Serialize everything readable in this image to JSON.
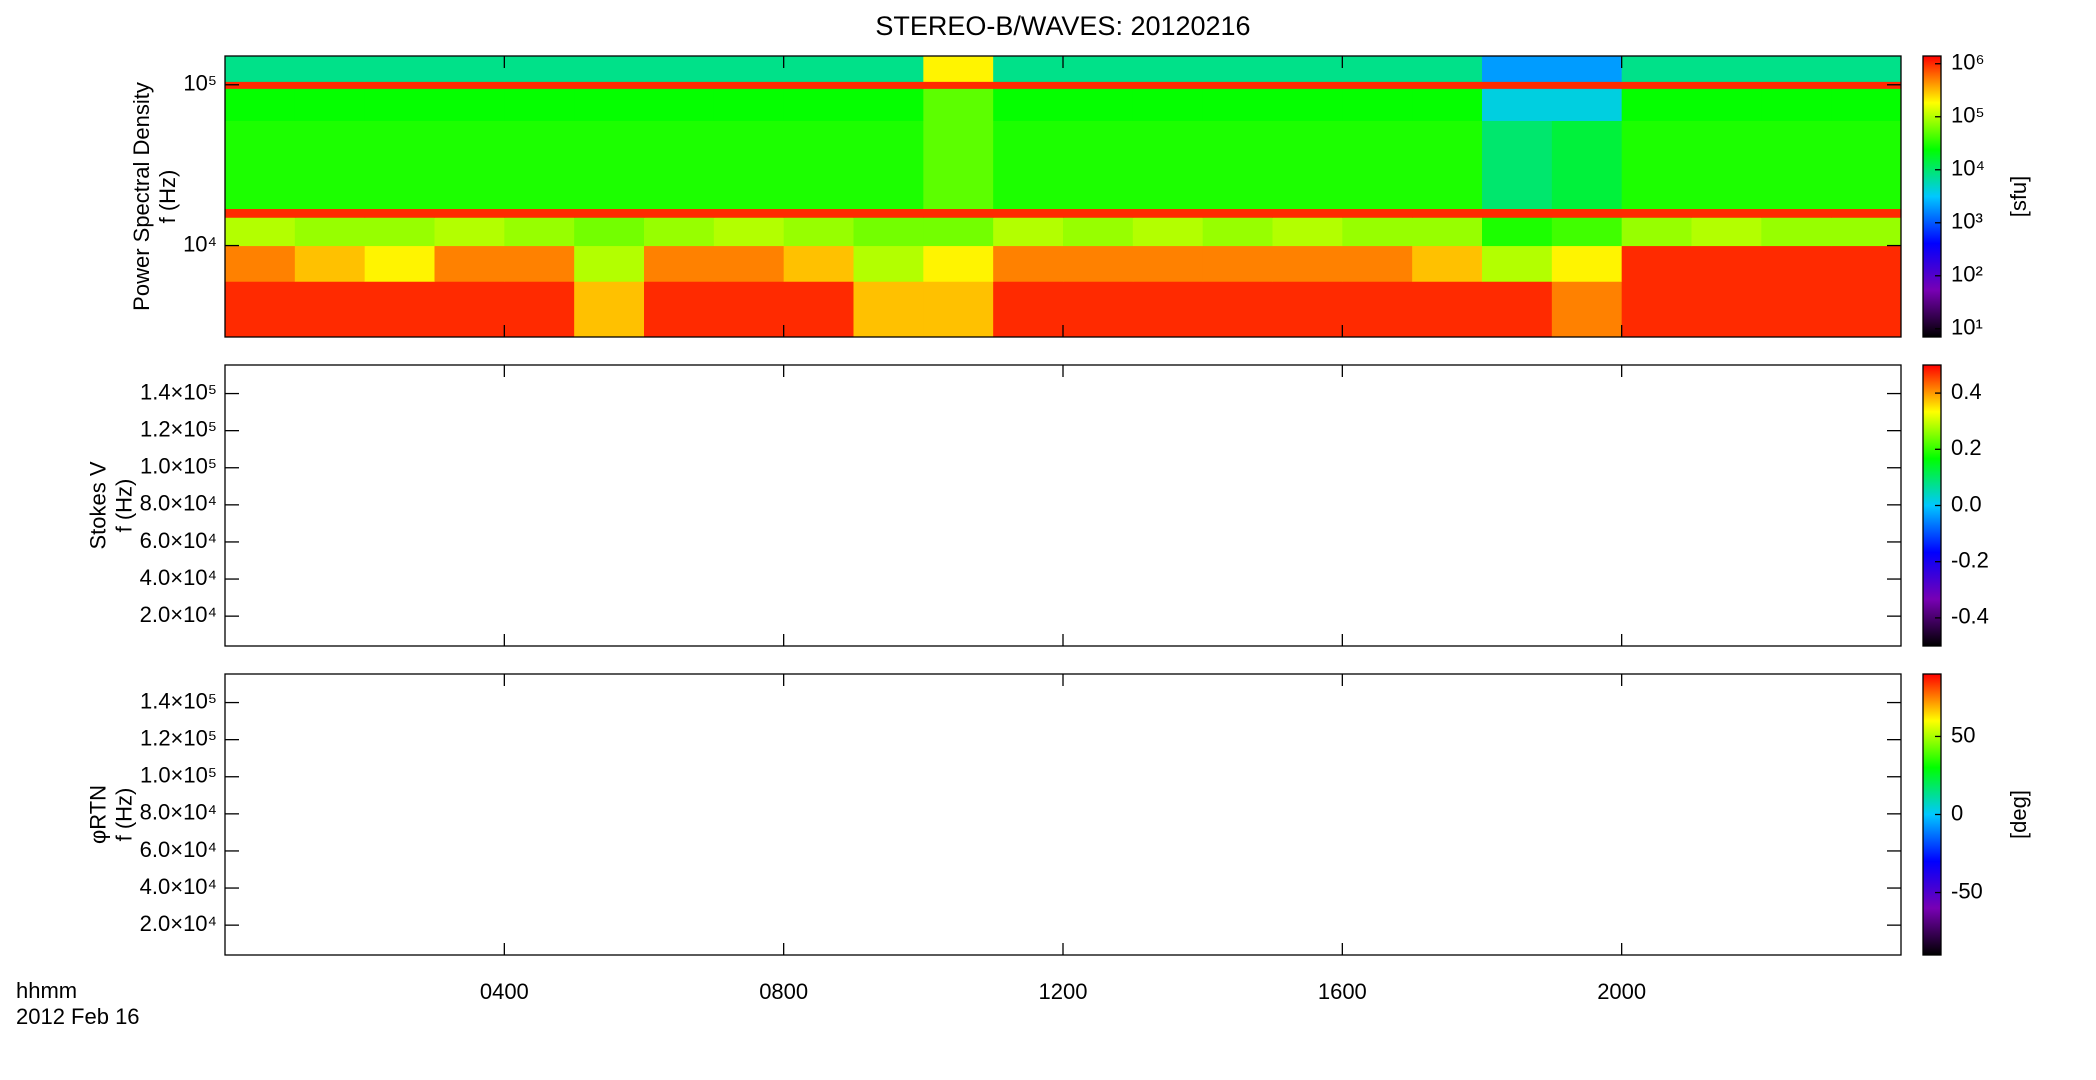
{
  "title": "STEREO-B/WAVES: 20120216",
  "xlabel": [
    "hhmm",
    "2012 Feb 16"
  ],
  "x_axis": {
    "xlim": [
      0,
      24
    ],
    "xticks": [
      {
        "value": 4,
        "label": "0400"
      },
      {
        "value": 8,
        "label": "0800"
      },
      {
        "value": 12,
        "label": "1200"
      },
      {
        "value": 16,
        "label": "1600"
      },
      {
        "value": 20,
        "label": "2000"
      }
    ]
  },
  "colormap": [
    "#000000",
    "#7800b4",
    "#0000ff",
    "#00c8ff",
    "#00ff00",
    "#ffff00",
    "#ff0000"
  ],
  "chart_data": [
    {
      "type": "spectrogram",
      "ylabel": [
        "Power Spectral Density",
        "f (Hz)"
      ],
      "yscale": "log",
      "ylim": [
        2700,
        151000
      ],
      "yticks": [
        {
          "value": 10000,
          "label": "10⁴"
        },
        {
          "value": 100000,
          "label": "10⁵"
        }
      ],
      "xbins": [
        0,
        1,
        2,
        3,
        4,
        5,
        6,
        7,
        8,
        9,
        10,
        11,
        12,
        13,
        14,
        15,
        16,
        17,
        18,
        19,
        20,
        21,
        22,
        23,
        24
      ],
      "ybins": [
        2700,
        6000,
        10000,
        15000,
        17000,
        60000,
        95000,
        105000,
        151000
      ],
      "z": [
        [
          1000000.0,
          1000000.0,
          1000000.0,
          1000000.0,
          1000000.0,
          300000.0,
          1000000.0,
          1000000.0,
          1000000.0,
          300000.0,
          300000.0,
          1000000.0,
          1000000.0,
          1000000.0,
          1000000.0,
          1000000.0,
          1000000.0,
          1000000.0,
          1000000.0,
          500000.0,
          1000000.0,
          1000000.0,
          1000000.0,
          1000000.0
        ],
        [
          500000.0,
          300000.0,
          200000.0,
          500000.0,
          500000.0,
          100000.0,
          500000.0,
          500000.0,
          300000.0,
          100000.0,
          200000.0,
          500000.0,
          500000.0,
          500000.0,
          500000.0,
          500000.0,
          500000.0,
          300000.0,
          100000.0,
          200000.0,
          1000000.0,
          1000000.0,
          1000000.0,
          1000000.0
        ],
        [
          100000.0,
          80000.0,
          80000.0,
          100000.0,
          80000.0,
          60000.0,
          80000.0,
          100000.0,
          80000.0,
          60000.0,
          60000.0,
          100000.0,
          80000.0,
          100000.0,
          80000.0,
          100000.0,
          80000.0,
          80000.0,
          30000.0,
          40000.0,
          80000.0,
          100000.0,
          80000.0,
          80000.0
        ],
        [
          1000000.0,
          1000000.0,
          1000000.0,
          1000000.0,
          1000000.0,
          1000000.0,
          1000000.0,
          1000000.0,
          1000000.0,
          1000000.0,
          1000000.0,
          1000000.0,
          1000000.0,
          1000000.0,
          1000000.0,
          1000000.0,
          1000000.0,
          1000000.0,
          1000000.0,
          1000000.0,
          1000000.0,
          1000000.0,
          1000000.0,
          1000000.0
        ],
        [
          30000.0,
          30000.0,
          30000.0,
          30000.0,
          30000.0,
          30000.0,
          30000.0,
          30000.0,
          30000.0,
          30000.0,
          50000.0,
          30000.0,
          30000.0,
          30000.0,
          30000.0,
          30000.0,
          30000.0,
          30000.0,
          10000.0,
          15000.0,
          30000.0,
          30000.0,
          30000.0,
          30000.0
        ],
        [
          25000.0,
          25000.0,
          25000.0,
          25000.0,
          25000.0,
          25000.0,
          25000.0,
          25000.0,
          25000.0,
          25000.0,
          50000.0,
          25000.0,
          25000.0,
          25000.0,
          25000.0,
          25000.0,
          25000.0,
          25000.0,
          4000.0,
          4000.0,
          25000.0,
          25000.0,
          25000.0,
          25000.0
        ],
        [
          1000000.0,
          1000000.0,
          1000000.0,
          1000000.0,
          1000000.0,
          1000000.0,
          1000000.0,
          1000000.0,
          1000000.0,
          1000000.0,
          1000000.0,
          1000000.0,
          1000000.0,
          1000000.0,
          1000000.0,
          1000000.0,
          1000000.0,
          1000000.0,
          1000000.0,
          1000000.0,
          1000000.0,
          1000000.0,
          1000000.0,
          1000000.0
        ],
        [
          8000.0,
          8000.0,
          8000.0,
          8000.0,
          8000.0,
          8000.0,
          8000.0,
          8000.0,
          8000.0,
          8000.0,
          200000.0,
          8000.0,
          8000.0,
          8000.0,
          8000.0,
          8000.0,
          8000.0,
          8000.0,
          2000.0,
          2000.0,
          8000.0,
          8000.0,
          8000.0,
          8000.0
        ]
      ],
      "colorbar": {
        "cscale": "log",
        "clim": [
          7,
          1400000
        ],
        "label": "[sfu]",
        "cticks": [
          {
            "value": 10,
            "label": "10¹"
          },
          {
            "value": 100,
            "label": "10²"
          },
          {
            "value": 1000,
            "label": "10³"
          },
          {
            "value": 10000,
            "label": "10⁴"
          },
          {
            "value": 100000,
            "label": "10⁵"
          },
          {
            "value": 1000000,
            "label": "10⁶"
          }
        ]
      }
    },
    {
      "type": "spectrogram",
      "ylabel": [
        "Stokes V",
        "f (Hz)"
      ],
      "yscale": "linear",
      "ylim": [
        3900,
        155400
      ],
      "yticks": [
        {
          "value": 20000,
          "label": "2.0×10⁴"
        },
        {
          "value": 40000,
          "label": "4.0×10⁴"
        },
        {
          "value": 60000,
          "label": "6.0×10⁴"
        },
        {
          "value": 80000,
          "label": "8.0×10⁴"
        },
        {
          "value": 100000,
          "label": "1.0×10⁵"
        },
        {
          "value": 120000,
          "label": "1.2×10⁵"
        },
        {
          "value": 140000,
          "label": "1.4×10⁵"
        }
      ],
      "colorbar": {
        "cscale": "linear",
        "clim": [
          -0.5,
          0.5
        ],
        "cticks": [
          -0.4,
          -0.2,
          {
            "value": 0,
            "label": "0.0"
          },
          0.2,
          0.4
        ]
      }
    },
    {
      "type": "spectrogram",
      "ylabel": [
        "φRTN",
        "f (Hz)"
      ],
      "yscale": "linear",
      "ylim": [
        3900,
        155400
      ],
      "yticks": [
        {
          "value": 20000,
          "label": "2.0×10⁴"
        },
        {
          "value": 40000,
          "label": "4.0×10⁴"
        },
        {
          "value": 60000,
          "label": "6.0×10⁴"
        },
        {
          "value": 80000,
          "label": "8.0×10⁴"
        },
        {
          "value": 100000,
          "label": "1.0×10⁵"
        },
        {
          "value": 120000,
          "label": "1.2×10⁵"
        },
        {
          "value": 140000,
          "label": "1.4×10⁵"
        }
      ],
      "colorbar": {
        "cscale": "linear",
        "clim": [
          -90,
          90
        ],
        "label": "[deg]",
        "cticks": [
          -50,
          0,
          50
        ]
      }
    }
  ]
}
